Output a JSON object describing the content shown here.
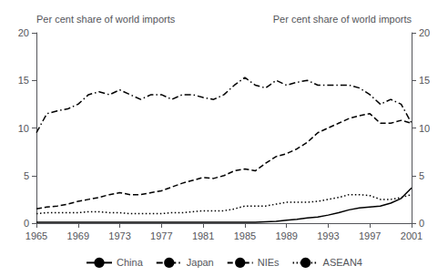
{
  "chart_data": {
    "type": "line",
    "x": [
      1965,
      1966,
      1967,
      1968,
      1969,
      1970,
      1971,
      1972,
      1973,
      1974,
      1975,
      1976,
      1977,
      1978,
      1979,
      1980,
      1981,
      1982,
      1983,
      1984,
      1985,
      1986,
      1987,
      1988,
      1989,
      1990,
      1991,
      1992,
      1993,
      1994,
      1995,
      1996,
      1997,
      1998,
      1999,
      2000,
      2001
    ],
    "series": [
      {
        "name": "China",
        "color": "black",
        "line_style": "solid",
        "values": [
          0.1,
          0.1,
          0.1,
          0.1,
          0.1,
          0.1,
          0.1,
          0.1,
          0.1,
          0.1,
          0.1,
          0.1,
          0.1,
          0.1,
          0.1,
          0.1,
          0.1,
          0.1,
          0.1,
          0.1,
          0.1,
          0.1,
          0.15,
          0.2,
          0.3,
          0.4,
          0.55,
          0.65,
          0.85,
          1.1,
          1.4,
          1.6,
          1.7,
          1.8,
          2.1,
          2.6,
          3.7
        ]
      },
      {
        "name": "Japan",
        "color": "black",
        "line_style": "dashdot",
        "values": [
          9.5,
          11.5,
          11.8,
          12.0,
          12.5,
          13.5,
          13.8,
          13.5,
          14.0,
          13.5,
          13.0,
          13.5,
          13.5,
          13.0,
          13.5,
          13.5,
          13.2,
          13.0,
          13.5,
          14.5,
          15.3,
          14.5,
          14.2,
          15.0,
          14.5,
          14.8,
          15.0,
          14.5,
          14.5,
          14.5,
          14.5,
          14.2,
          13.5,
          12.5,
          13.0,
          12.5,
          10.5
        ]
      },
      {
        "name": "NIEs",
        "color": "black",
        "line_style": "dashed",
        "values": [
          1.5,
          1.7,
          1.8,
          2.0,
          2.3,
          2.5,
          2.7,
          3.0,
          3.2,
          3.0,
          3.0,
          3.2,
          3.4,
          3.8,
          4.2,
          4.5,
          4.8,
          4.7,
          5.0,
          5.5,
          5.7,
          5.5,
          6.3,
          7.0,
          7.3,
          7.8,
          8.5,
          9.5,
          10.0,
          10.5,
          11.0,
          11.3,
          11.5,
          10.5,
          10.5,
          10.8,
          10.5
        ]
      },
      {
        "name": "ASEAN4",
        "color": "black",
        "line_style": "dotted",
        "values": [
          1.0,
          1.1,
          1.1,
          1.1,
          1.1,
          1.2,
          1.2,
          1.1,
          1.1,
          1.0,
          1.0,
          1.0,
          1.0,
          1.1,
          1.1,
          1.2,
          1.3,
          1.3,
          1.3,
          1.5,
          1.8,
          1.8,
          1.8,
          2.0,
          2.2,
          2.2,
          2.2,
          2.3,
          2.5,
          2.7,
          3.0,
          3.0,
          2.9,
          2.5,
          2.5,
          2.7,
          3.0
        ]
      }
    ],
    "xlim": [
      1965,
      2001
    ],
    "xticks": [
      1965,
      1969,
      1973,
      1977,
      1981,
      1985,
      1989,
      1993,
      1997,
      2001
    ],
    "ylim": [
      0,
      20
    ],
    "yticks": [
      0,
      5,
      10,
      15,
      20
    ],
    "y2lim": [
      0,
      20
    ],
    "y2ticks": [
      0,
      5,
      10,
      15,
      20
    ],
    "ylabel": "Per cent share of world imports",
    "y2label": "Per cent share of world imports",
    "grid": false,
    "legend": "bottom"
  }
}
